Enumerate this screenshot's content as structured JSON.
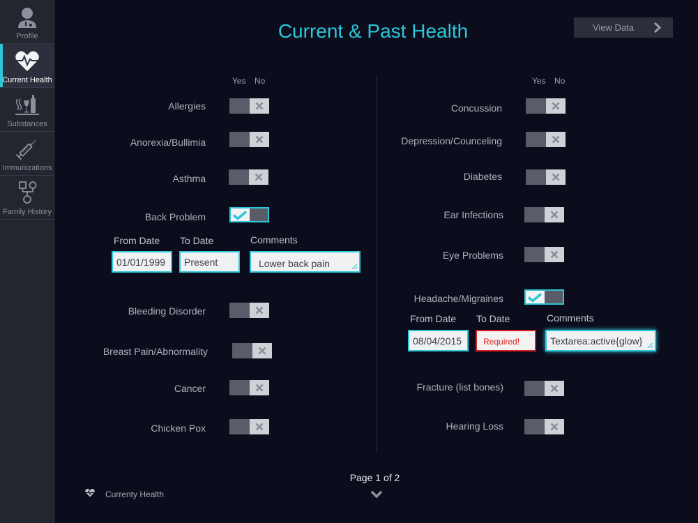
{
  "sidebar": {
    "items": [
      {
        "label": "Profile",
        "icon": "doctor-icon",
        "active": false
      },
      {
        "label": "Current Health",
        "icon": "heart-pulse-icon",
        "active": true
      },
      {
        "label": "Substances",
        "icon": "substances-icon",
        "active": false
      },
      {
        "label": "Immunizations",
        "icon": "syringe-icon",
        "active": false
      },
      {
        "label": "Family History",
        "icon": "family-tree-icon",
        "active": false
      }
    ]
  },
  "header": {
    "title": "Current & Past Health",
    "view_data_label": "View Data"
  },
  "columns": {
    "yes_label": "Yes",
    "no_label": "No"
  },
  "left_conditions": [
    {
      "label": "Allergies",
      "value": "no"
    },
    {
      "label": "Anorexia/Bullimia",
      "value": "no"
    },
    {
      "label": "Asthma",
      "value": "no"
    },
    {
      "label": "Back Problem",
      "value": "yes"
    },
    {
      "label": "Bleeding Disorder",
      "value": "no"
    },
    {
      "label": "Breast Pain/Abnormality",
      "value": "no"
    },
    {
      "label": "Cancer",
      "value": "no"
    },
    {
      "label": "Chicken Pox",
      "value": "no"
    }
  ],
  "right_conditions": [
    {
      "label": "Concussion",
      "value": "no"
    },
    {
      "label": "Depression/Counceling",
      "value": "no"
    },
    {
      "label": "Diabetes",
      "value": "no"
    },
    {
      "label": "Ear Infections",
      "value": "no"
    },
    {
      "label": "Eye Problems",
      "value": "no"
    },
    {
      "label": "Headache/Migraines",
      "value": "yes"
    },
    {
      "label": "Fracture (list bones)",
      "value": "no"
    },
    {
      "label": "Hearing Loss",
      "value": "no"
    }
  ],
  "back_problem_details": {
    "from_label": "From Date",
    "to_label": "To Date",
    "comments_label": "Comments",
    "from_value": "01/01/1999",
    "to_value": "Present",
    "comments_value": "Lower back pain"
  },
  "headache_details": {
    "from_label": "From Date",
    "to_label": "To Date",
    "comments_label": "Comments",
    "from_value": "08/04/2015",
    "to_value": "Required!",
    "comments_value": "Textarea:active{glow}"
  },
  "footer": {
    "page_label": "Page 1 of 2",
    "breadcrumb": "Currenty Health",
    "accent_color": "#2ec7d8",
    "error_color": "#e01e1e"
  }
}
